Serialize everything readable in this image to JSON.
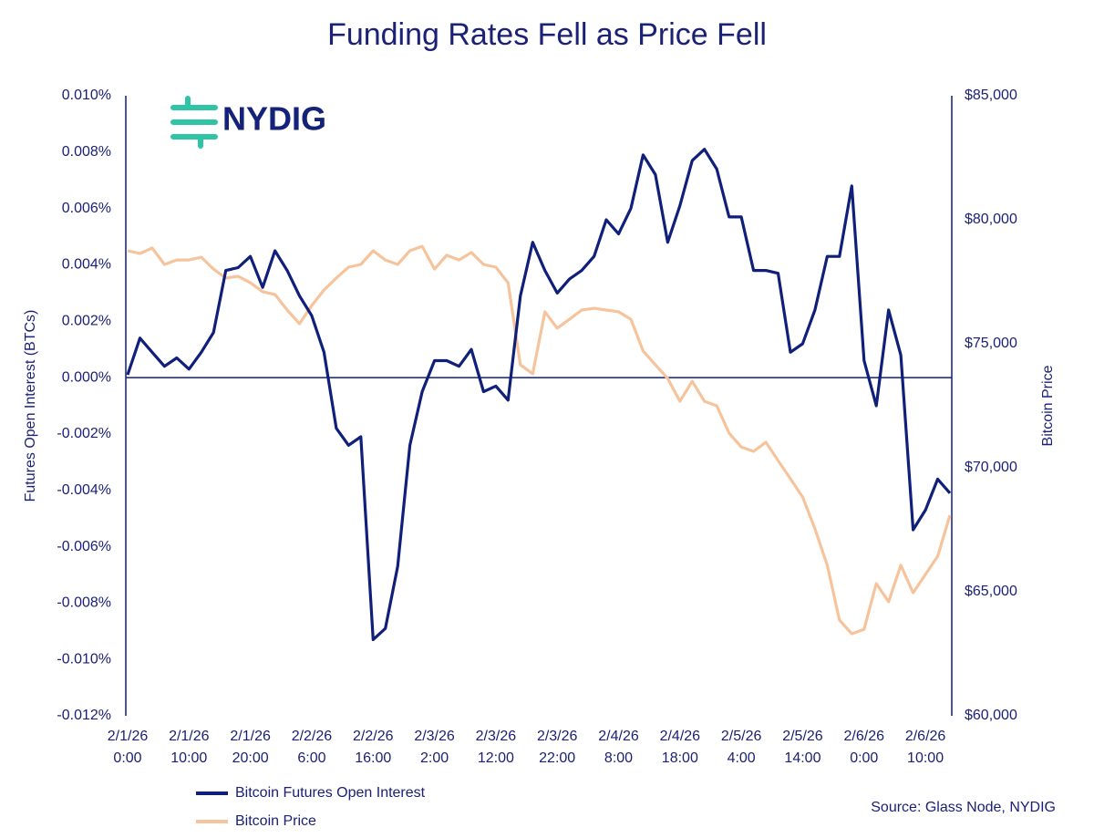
{
  "chart_data": {
    "type": "line",
    "title": "Funding Rates Fell as Price Fell",
    "logo": "NYDIG",
    "ylabel": "Futures Open Interest (BTCs)",
    "y2label": "Bitcoin Price",
    "source": "Source: Glass Node, NYDIG",
    "categories": [
      "2/1/26 0:00",
      null,
      null,
      null,
      null,
      "2/1/26 10:00",
      null,
      null,
      null,
      null,
      "2/1/26 20:00",
      null,
      null,
      null,
      null,
      "2/2/26 6:00",
      null,
      null,
      null,
      null,
      "2/2/26 16:00",
      null,
      null,
      null,
      null,
      "2/3/26 2:00",
      null,
      null,
      null,
      null,
      "2/3/26 12:00",
      null,
      null,
      null,
      null,
      "2/3/26 22:00",
      null,
      null,
      null,
      null,
      "2/4/26 8:00",
      null,
      null,
      null,
      null,
      "2/4/26 18:00",
      null,
      null,
      null,
      null,
      "2/5/26 4:00",
      null,
      null,
      null,
      null,
      "2/5/26 14:00",
      null,
      null,
      null,
      null,
      "2/6/26 0:00",
      null,
      null,
      null,
      null,
      "2/6/26 10:00",
      null,
      null
    ],
    "series": [
      {
        "name": "Bitcoin Futures Open Interest",
        "color": "#0f1f7a",
        "axis": "y",
        "values": [
          0.0001,
          0.0014,
          0.0009,
          0.0004,
          0.0007,
          0.0003,
          0.0009,
          0.0016,
          0.0038,
          0.0039,
          0.0043,
          0.0032,
          0.0045,
          0.0038,
          0.0029,
          0.0022,
          0.0009,
          -0.0018,
          -0.0024,
          -0.0021,
          -0.0093,
          -0.0089,
          -0.0067,
          -0.0024,
          -0.0005,
          0.0006,
          0.0006,
          0.0004,
          0.001,
          -0.0005,
          -0.0003,
          -0.0008,
          0.0029,
          0.0048,
          0.0038,
          0.003,
          0.0035,
          0.0038,
          0.0043,
          0.0056,
          0.0051,
          0.006,
          0.0079,
          0.0072,
          0.0048,
          0.0061,
          0.0077,
          0.0081,
          0.0074,
          0.0057,
          0.0057,
          0.0038,
          0.0038,
          0.0037,
          0.0009,
          0.0012,
          0.0024,
          0.0043,
          0.0043,
          0.0068,
          0.0006,
          -0.001,
          0.0024,
          0.0008,
          -0.0054,
          -0.0047,
          -0.0036,
          -0.0041
        ]
      },
      {
        "name": "Bitcoin Price",
        "color": "#f6c49c",
        "axis": "y2",
        "values": [
          78750,
          78640,
          78860,
          78200,
          78380,
          78380,
          78490,
          78010,
          77650,
          77720,
          77460,
          77100,
          76990,
          76360,
          75810,
          76540,
          77170,
          77650,
          78090,
          78200,
          78750,
          78380,
          78200,
          78750,
          78930,
          78010,
          78570,
          78380,
          78680,
          78200,
          78090,
          77460,
          74150,
          73790,
          76290,
          75630,
          75990,
          76360,
          76430,
          76360,
          76290,
          75990,
          74710,
          74150,
          73600,
          72680,
          73490,
          72680,
          72500,
          71400,
          70840,
          70660,
          71030,
          70290,
          69560,
          68820,
          67540,
          66070,
          63860,
          63310,
          63490,
          65330,
          64600,
          66070,
          64960,
          65700,
          66430,
          68090
        ]
      }
    ],
    "ylim": [
      -0.012,
      0.01
    ],
    "yticks": [
      {
        "value": 0.01,
        "label": "0.010%"
      },
      {
        "value": 0.008,
        "label": "0.008%"
      },
      {
        "value": 0.006,
        "label": "0.006%"
      },
      {
        "value": 0.004,
        "label": "0.004%"
      },
      {
        "value": 0.002,
        "label": "0.002%"
      },
      {
        "value": 0,
        "label": "0.000%"
      },
      {
        "value": -0.002,
        "label": "-0.002%"
      },
      {
        "value": -0.004,
        "label": "-0.004%"
      },
      {
        "value": -0.006,
        "label": "-0.006%"
      },
      {
        "value": -0.008,
        "label": "-0.008%"
      },
      {
        "value": -0.01,
        "label": "-0.010%"
      },
      {
        "value": -0.012,
        "label": "-0.012%"
      }
    ],
    "y2lim": [
      60000,
      85000
    ],
    "y2ticks": [
      {
        "value": 85000,
        "label": "$85,000"
      },
      {
        "value": 80000,
        "label": "$80,000"
      },
      {
        "value": 75000,
        "label": "$75,000"
      },
      {
        "value": 70000,
        "label": "$70,000"
      },
      {
        "value": 65000,
        "label": "$65,000"
      },
      {
        "value": 60000,
        "label": "$60,000"
      }
    ],
    "grid": false,
    "legend": "bottom-left"
  }
}
